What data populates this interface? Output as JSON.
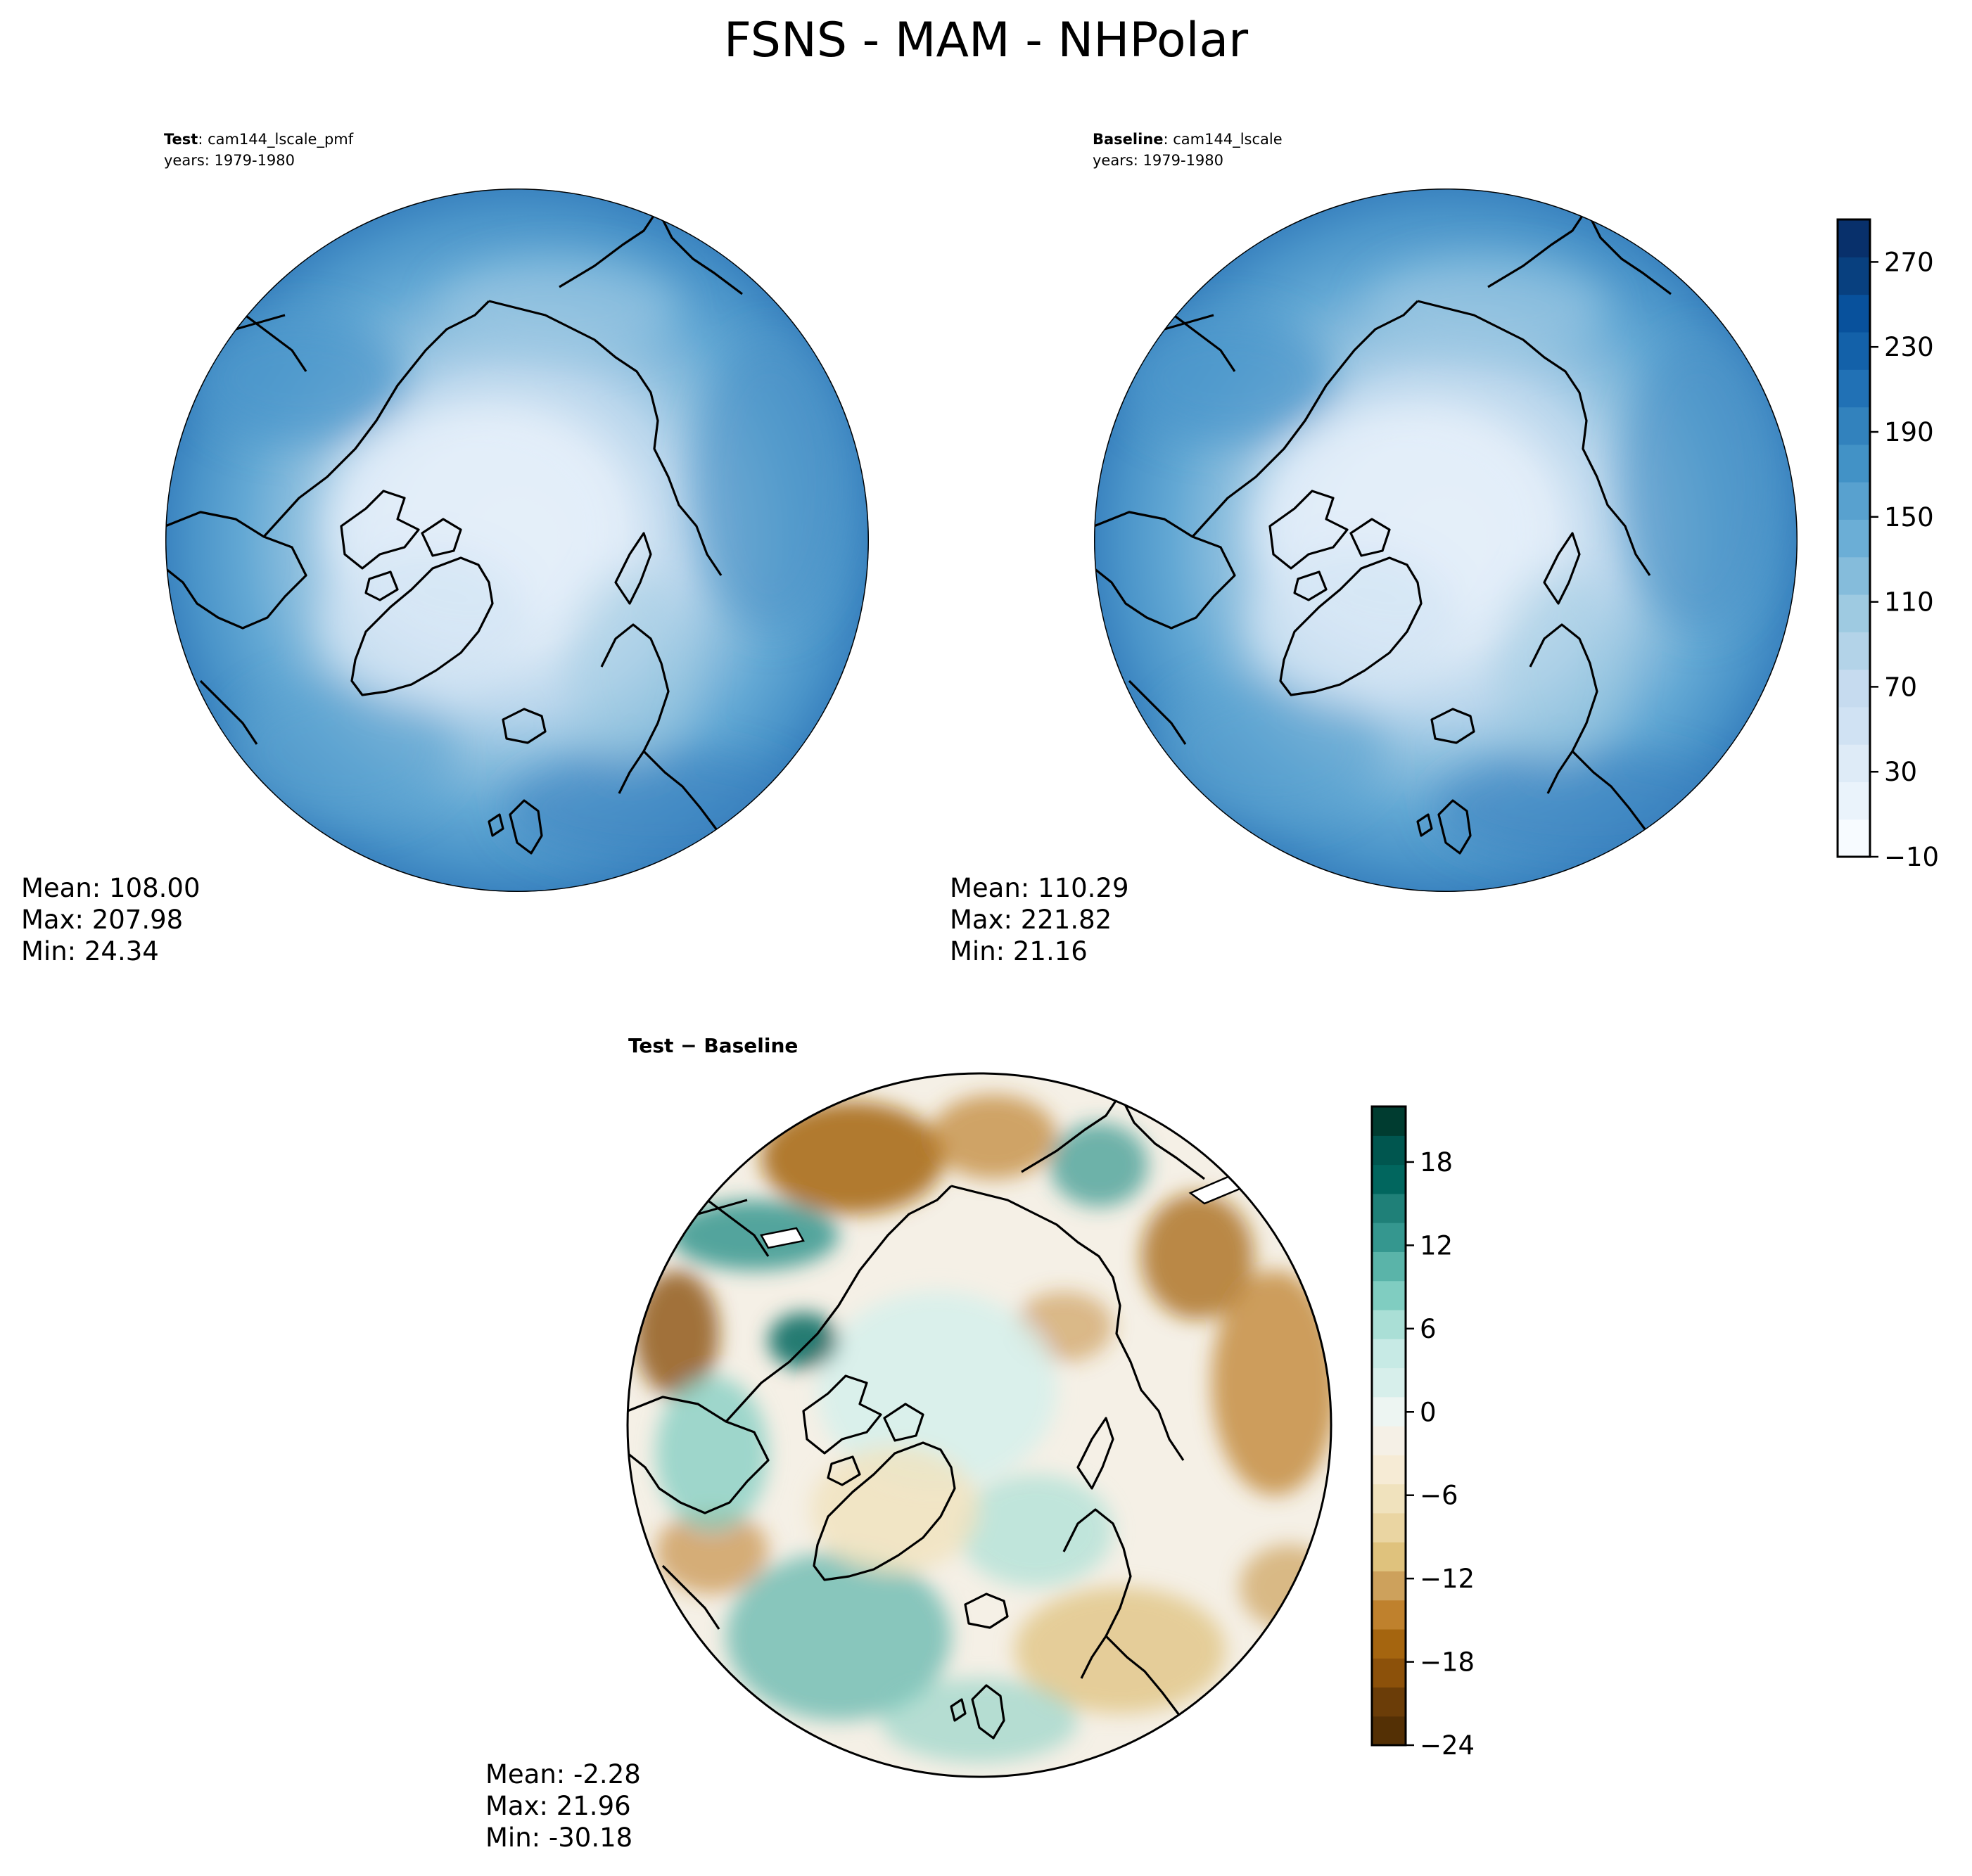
{
  "title": "FSNS - MAM - NHPolar",
  "panels": {
    "test": {
      "label_bold": "Test",
      "label_rest": ": cam144_lscale_pmf",
      "years": "years: 1979-1980",
      "mean": "Mean: 108.00",
      "max": "Max: 207.98",
      "min": "Min: 24.34"
    },
    "baseline": {
      "label_bold": "Baseline",
      "label_rest": ": cam144_lscale",
      "years": "years: 1979-1980",
      "mean": "Mean: 110.29",
      "max": "Max: 221.82",
      "min": "Min: 21.16"
    },
    "difference": {
      "label": "Test − Baseline",
      "mean": "Mean: -2.28",
      "max": "Max: 21.96",
      "min": "Min: -30.18"
    }
  },
  "chart_data": [
    {
      "type": "heatmap",
      "name": "Test",
      "projection": "north-polar-stereographic",
      "colormap": "Blues",
      "levels_range": [
        -10,
        290
      ],
      "stats": {
        "mean": 108.0,
        "max": 207.98,
        "min": 24.34
      }
    },
    {
      "type": "heatmap",
      "name": "Baseline",
      "projection": "north-polar-stereographic",
      "colormap": "Blues",
      "levels_range": [
        -10,
        290
      ],
      "stats": {
        "mean": 110.29,
        "max": 221.82,
        "min": 21.16
      }
    },
    {
      "type": "heatmap",
      "name": "Test − Baseline",
      "projection": "north-polar-stereographic",
      "colormap": "BrBG",
      "levels_range": [
        -24,
        22
      ],
      "stats": {
        "mean": -2.28,
        "max": 21.96,
        "min": -30.18
      }
    }
  ],
  "colorbars": {
    "main": {
      "min": -10,
      "max": 290,
      "ticks": [
        -10,
        30,
        70,
        110,
        150,
        190,
        230,
        270
      ],
      "tick_labels": [
        "−10",
        "30",
        "70",
        "110",
        "150",
        "190",
        "230",
        "270"
      ],
      "colors": [
        "#f7fbff",
        "#eaf3fb",
        "#deebf7",
        "#d0e2f3",
        "#c6dbef",
        "#b3d3e8",
        "#9ecae1",
        "#85bcdb",
        "#6baed6",
        "#58a1cf",
        "#4292c6",
        "#3282bd",
        "#2171b5",
        "#1361a9",
        "#08519c",
        "#08407f",
        "#08306b"
      ]
    },
    "diff": {
      "min": -24,
      "max": 22,
      "ticks": [
        -24,
        -18,
        -12,
        -6,
        0,
        6,
        12,
        18
      ],
      "tick_labels": [
        "−24",
        "−18",
        "−12",
        "−6",
        "0",
        "6",
        "12",
        "18"
      ],
      "colors": [
        "#543005",
        "#6b3d08",
        "#8c510a",
        "#a5650f",
        "#bf812d",
        "#cda15c",
        "#dfc27d",
        "#ead5a2",
        "#f0e2bd",
        "#f6ebd5",
        "#f5f0e6",
        "#edf5f2",
        "#d7efeb",
        "#c7eae5",
        "#aadfd6",
        "#80cdc1",
        "#5ab4a9",
        "#35978f",
        "#1f8078",
        "#01665e",
        "#00564f",
        "#003c30"
      ]
    }
  }
}
